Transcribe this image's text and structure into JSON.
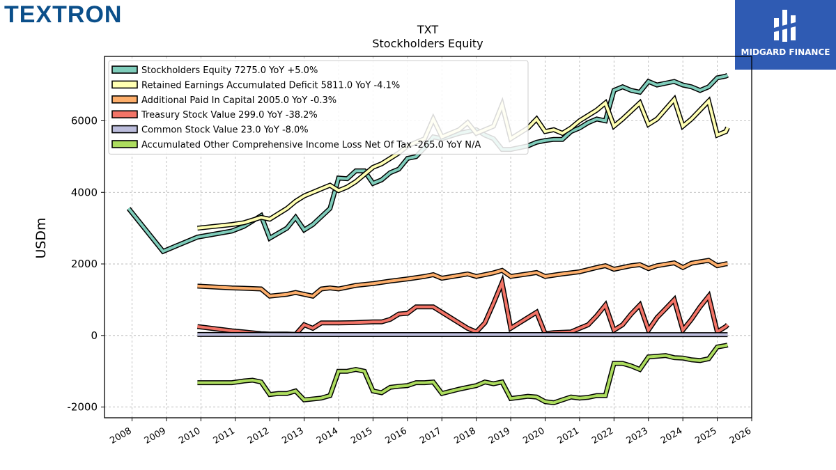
{
  "brand": {
    "logo_text": "TEXTRON",
    "badge_text": "MIDGARD FINANCE"
  },
  "chart_data": {
    "type": "line",
    "title": "TXT",
    "subtitle": "Stockholders  Equity",
    "ylabel": "USDm",
    "xlabel": "",
    "xlim": [
      2007.2,
      2026.0
    ],
    "ylim": [
      -2300,
      7800
    ],
    "y_ticks": [
      -2000,
      0,
      2000,
      4000,
      6000
    ],
    "x_ticks": [
      "2008",
      "2009",
      "2010",
      "2011",
      "2012",
      "2013",
      "2014",
      "2015",
      "2016",
      "2017",
      "2018",
      "2019",
      "2020",
      "2021",
      "2022",
      "2023",
      "2024",
      "2025",
      "2026"
    ],
    "grid": true,
    "legend_position": "top-left",
    "series": [
      {
        "name": "Stockholders Equity",
        "legend": "Stockholders Equity  7275.0 YoY +5.0%",
        "color": "#7fcdbb",
        "points": [
          [
            2007.9,
            3550
          ],
          [
            2008.9,
            2350
          ],
          [
            2009.9,
            2750
          ],
          [
            2010.9,
            2920
          ],
          [
            2011.25,
            3050
          ],
          [
            2011.5,
            3200
          ],
          [
            2011.75,
            3350
          ],
          [
            2012.0,
            2720
          ],
          [
            2012.5,
            3000
          ],
          [
            2012.75,
            3300
          ],
          [
            2013.0,
            2950
          ],
          [
            2013.25,
            3100
          ],
          [
            2013.75,
            3550
          ],
          [
            2014.0,
            4400
          ],
          [
            2014.25,
            4380
          ],
          [
            2014.5,
            4600
          ],
          [
            2014.75,
            4600
          ],
          [
            2015.0,
            4250
          ],
          [
            2015.25,
            4350
          ],
          [
            2015.5,
            4550
          ],
          [
            2015.75,
            4650
          ],
          [
            2016.0,
            4950
          ],
          [
            2016.25,
            5000
          ],
          [
            2016.5,
            5250
          ],
          [
            2016.75,
            5550
          ],
          [
            2017.0,
            5500
          ],
          [
            2017.5,
            5650
          ],
          [
            2017.75,
            5700
          ],
          [
            2018.0,
            5750
          ],
          [
            2018.25,
            5600
          ],
          [
            2018.5,
            5500
          ],
          [
            2018.75,
            5200
          ],
          [
            2019.0,
            5200
          ],
          [
            2019.5,
            5300
          ],
          [
            2019.75,
            5400
          ],
          [
            2020.0,
            5450
          ],
          [
            2020.25,
            5480
          ],
          [
            2020.5,
            5480
          ],
          [
            2020.75,
            5700
          ],
          [
            2021.0,
            5800
          ],
          [
            2021.25,
            5950
          ],
          [
            2021.5,
            6050
          ],
          [
            2021.75,
            6000
          ],
          [
            2022.0,
            6850
          ],
          [
            2022.25,
            6950
          ],
          [
            2022.5,
            6850
          ],
          [
            2022.75,
            6800
          ],
          [
            2023.0,
            7100
          ],
          [
            2023.25,
            7000
          ],
          [
            2023.5,
            7050
          ],
          [
            2023.75,
            7100
          ],
          [
            2024.0,
            7000
          ],
          [
            2024.25,
            6950
          ],
          [
            2024.5,
            6850
          ],
          [
            2024.75,
            6950
          ],
          [
            2025.0,
            7200
          ],
          [
            2025.25,
            7250
          ],
          [
            2025.3,
            7275
          ]
        ]
      },
      {
        "name": "Retained Earnings Accumulated Deficit",
        "legend": "Retained Earnings Accumulated Deficit  5811.0 YoY -4.1%",
        "color": "#ffffb2",
        "points": [
          [
            2009.9,
            3000
          ],
          [
            2010.9,
            3100
          ],
          [
            2011.25,
            3150
          ],
          [
            2011.75,
            3300
          ],
          [
            2012.0,
            3250
          ],
          [
            2012.25,
            3400
          ],
          [
            2012.5,
            3550
          ],
          [
            2012.75,
            3750
          ],
          [
            2013.0,
            3900
          ],
          [
            2013.5,
            4100
          ],
          [
            2013.75,
            4200
          ],
          [
            2014.0,
            4050
          ],
          [
            2014.25,
            4150
          ],
          [
            2014.5,
            4300
          ],
          [
            2015.0,
            4700
          ],
          [
            2015.25,
            4800
          ],
          [
            2015.75,
            5100
          ],
          [
            2016.0,
            5300
          ],
          [
            2016.5,
            5500
          ],
          [
            2016.75,
            6050
          ],
          [
            2017.0,
            5550
          ],
          [
            2017.5,
            5750
          ],
          [
            2017.75,
            5950
          ],
          [
            2018.0,
            5650
          ],
          [
            2018.5,
            5850
          ],
          [
            2018.75,
            6450
          ],
          [
            2019.0,
            5500
          ],
          [
            2019.5,
            5800
          ],
          [
            2019.75,
            6050
          ],
          [
            2020.0,
            5700
          ],
          [
            2020.25,
            5750
          ],
          [
            2020.5,
            5650
          ],
          [
            2020.75,
            5800
          ],
          [
            2021.0,
            6000
          ],
          [
            2021.5,
            6300
          ],
          [
            2021.75,
            6500
          ],
          [
            2022.0,
            5850
          ],
          [
            2022.25,
            6050
          ],
          [
            2022.75,
            6500
          ],
          [
            2023.0,
            5900
          ],
          [
            2023.25,
            6050
          ],
          [
            2023.75,
            6600
          ],
          [
            2024.0,
            5850
          ],
          [
            2024.25,
            6050
          ],
          [
            2024.75,
            6550
          ],
          [
            2025.0,
            5600
          ],
          [
            2025.25,
            5700
          ],
          [
            2025.3,
            5811
          ]
        ]
      },
      {
        "name": "Additional Paid In Capital",
        "legend": "Additional Paid In Capital  2005.0 YoY -0.3%",
        "color": "#fdae6b",
        "points": [
          [
            2009.9,
            1380
          ],
          [
            2010.9,
            1330
          ],
          [
            2011.25,
            1320
          ],
          [
            2011.75,
            1300
          ],
          [
            2012.0,
            1100
          ],
          [
            2012.5,
            1150
          ],
          [
            2012.75,
            1200
          ],
          [
            2013.0,
            1150
          ],
          [
            2013.25,
            1100
          ],
          [
            2013.5,
            1300
          ],
          [
            2013.75,
            1330
          ],
          [
            2014.0,
            1300
          ],
          [
            2014.5,
            1400
          ],
          [
            2015.0,
            1450
          ],
          [
            2015.5,
            1520
          ],
          [
            2016.0,
            1580
          ],
          [
            2016.5,
            1650
          ],
          [
            2016.75,
            1700
          ],
          [
            2017.0,
            1600
          ],
          [
            2017.5,
            1680
          ],
          [
            2017.75,
            1720
          ],
          [
            2018.0,
            1650
          ],
          [
            2018.5,
            1750
          ],
          [
            2018.75,
            1820
          ],
          [
            2019.0,
            1650
          ],
          [
            2019.5,
            1720
          ],
          [
            2019.75,
            1760
          ],
          [
            2020.0,
            1650
          ],
          [
            2020.5,
            1720
          ],
          [
            2020.75,
            1750
          ],
          [
            2021.0,
            1780
          ],
          [
            2021.5,
            1900
          ],
          [
            2021.75,
            1950
          ],
          [
            2022.0,
            1850
          ],
          [
            2022.5,
            1950
          ],
          [
            2022.75,
            1980
          ],
          [
            2023.0,
            1870
          ],
          [
            2023.25,
            1950
          ],
          [
            2023.75,
            2030
          ],
          [
            2024.0,
            1900
          ],
          [
            2024.25,
            2020
          ],
          [
            2024.75,
            2100
          ],
          [
            2025.0,
            1950
          ],
          [
            2025.25,
            2000
          ],
          [
            2025.3,
            2005
          ]
        ]
      },
      {
        "name": "Treasury Stock Value",
        "legend": "Treasury Stock Value  299.0 YoY -38.2%",
        "color": "#f37467",
        "points": [
          [
            2009.9,
            250
          ],
          [
            2010.9,
            130
          ],
          [
            2011.25,
            100
          ],
          [
            2011.75,
            50
          ],
          [
            2012.0,
            40
          ],
          [
            2012.5,
            40
          ],
          [
            2012.75,
            30
          ],
          [
            2013.0,
            300
          ],
          [
            2013.25,
            200
          ],
          [
            2013.5,
            350
          ],
          [
            2014.0,
            350
          ],
          [
            2014.5,
            360
          ],
          [
            2015.0,
            380
          ],
          [
            2015.25,
            380
          ],
          [
            2015.5,
            450
          ],
          [
            2015.75,
            600
          ],
          [
            2016.0,
            620
          ],
          [
            2016.25,
            800
          ],
          [
            2016.75,
            800
          ],
          [
            2017.0,
            650
          ],
          [
            2017.5,
            350
          ],
          [
            2017.75,
            200
          ],
          [
            2018.0,
            100
          ],
          [
            2018.25,
            350
          ],
          [
            2018.5,
            900
          ],
          [
            2018.75,
            1480
          ],
          [
            2019.0,
            200
          ],
          [
            2019.25,
            350
          ],
          [
            2019.5,
            500
          ],
          [
            2019.75,
            650
          ],
          [
            2020.0,
            50
          ],
          [
            2020.25,
            80
          ],
          [
            2020.75,
            100
          ],
          [
            2021.0,
            200
          ],
          [
            2021.25,
            300
          ],
          [
            2021.5,
            550
          ],
          [
            2021.75,
            850
          ],
          [
            2022.0,
            150
          ],
          [
            2022.25,
            300
          ],
          [
            2022.5,
            600
          ],
          [
            2022.75,
            850
          ],
          [
            2023.0,
            150
          ],
          [
            2023.25,
            500
          ],
          [
            2023.5,
            750
          ],
          [
            2023.75,
            1000
          ],
          [
            2024.0,
            150
          ],
          [
            2024.25,
            450
          ],
          [
            2024.5,
            800
          ],
          [
            2024.75,
            1100
          ],
          [
            2025.0,
            100
          ],
          [
            2025.25,
            250
          ],
          [
            2025.3,
            299
          ]
        ]
      },
      {
        "name": "Common Stock Value",
        "legend": "Common Stock Value  23.0 YoY -8.0%",
        "color": "#bcbddc",
        "points": [
          [
            2009.9,
            28
          ],
          [
            2012.0,
            27
          ],
          [
            2014.0,
            26
          ],
          [
            2016.0,
            26
          ],
          [
            2018.0,
            25
          ],
          [
            2020.0,
            25
          ],
          [
            2022.0,
            24
          ],
          [
            2024.0,
            24
          ],
          [
            2025.3,
            23
          ]
        ]
      },
      {
        "name": "Accumulated Other Comprehensive Income Loss Net Of Tax",
        "legend": "Accumulated Other Comprehensive Income Loss Net Of Tax  -265.0 YoY N/A",
        "color": "#addd5e",
        "points": [
          [
            2009.9,
            -1320
          ],
          [
            2010.9,
            -1320
          ],
          [
            2011.25,
            -1270
          ],
          [
            2011.5,
            -1250
          ],
          [
            2011.75,
            -1300
          ],
          [
            2012.0,
            -1650
          ],
          [
            2012.25,
            -1620
          ],
          [
            2012.5,
            -1620
          ],
          [
            2012.75,
            -1550
          ],
          [
            2013.0,
            -1800
          ],
          [
            2013.5,
            -1750
          ],
          [
            2013.75,
            -1680
          ],
          [
            2014.0,
            -1000
          ],
          [
            2014.25,
            -1000
          ],
          [
            2014.5,
            -950
          ],
          [
            2014.75,
            -1000
          ],
          [
            2015.0,
            -1550
          ],
          [
            2015.25,
            -1600
          ],
          [
            2015.5,
            -1450
          ],
          [
            2015.75,
            -1420
          ],
          [
            2016.0,
            -1400
          ],
          [
            2016.25,
            -1320
          ],
          [
            2016.5,
            -1320
          ],
          [
            2016.75,
            -1300
          ],
          [
            2017.0,
            -1620
          ],
          [
            2017.5,
            -1500
          ],
          [
            2017.75,
            -1450
          ],
          [
            2018.0,
            -1400
          ],
          [
            2018.25,
            -1300
          ],
          [
            2018.5,
            -1350
          ],
          [
            2018.75,
            -1300
          ],
          [
            2019.0,
            -1760
          ],
          [
            2019.5,
            -1700
          ],
          [
            2019.75,
            -1720
          ],
          [
            2020.0,
            -1850
          ],
          [
            2020.25,
            -1880
          ],
          [
            2020.5,
            -1800
          ],
          [
            2020.75,
            -1720
          ],
          [
            2021.0,
            -1750
          ],
          [
            2021.25,
            -1730
          ],
          [
            2021.5,
            -1680
          ],
          [
            2021.75,
            -1680
          ],
          [
            2022.0,
            -780
          ],
          [
            2022.25,
            -780
          ],
          [
            2022.5,
            -850
          ],
          [
            2022.75,
            -950
          ],
          [
            2023.0,
            -600
          ],
          [
            2023.25,
            -580
          ],
          [
            2023.5,
            -560
          ],
          [
            2023.75,
            -620
          ],
          [
            2024.0,
            -630
          ],
          [
            2024.25,
            -680
          ],
          [
            2024.5,
            -700
          ],
          [
            2024.75,
            -650
          ],
          [
            2025.0,
            -320
          ],
          [
            2025.25,
            -280
          ],
          [
            2025.3,
            -265
          ]
        ]
      }
    ]
  }
}
